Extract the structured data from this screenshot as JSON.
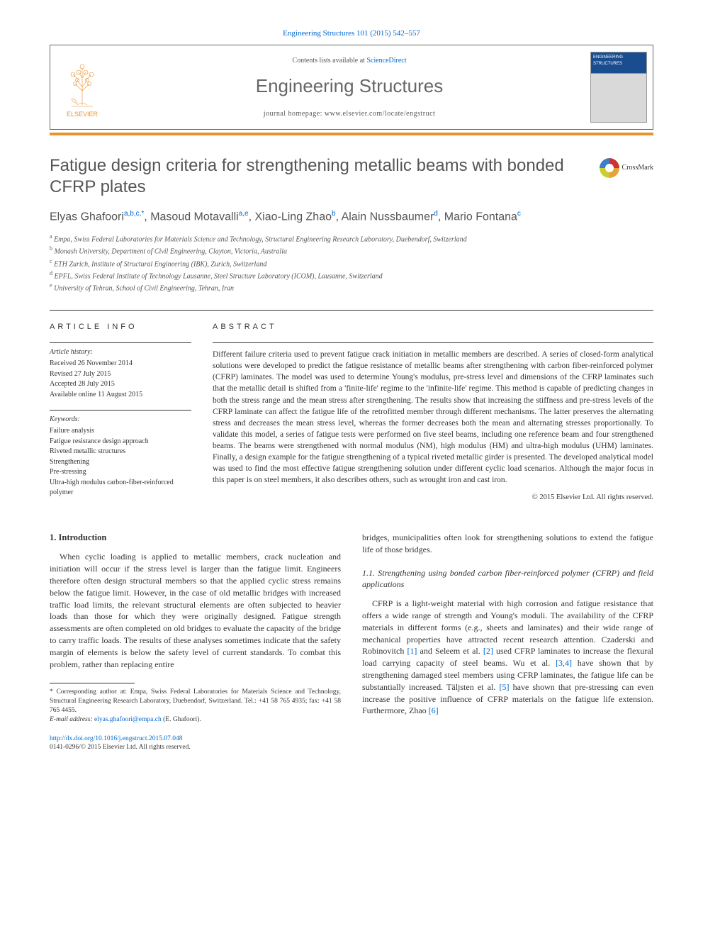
{
  "citation": {
    "text": "Engineering Structures 101 (2015) 542–557",
    "link_color": "#0066cc"
  },
  "header": {
    "contents_prefix": "Contents lists available at ",
    "contents_link": "ScienceDirect",
    "journal_name": "Engineering Structures",
    "homepage_prefix": "journal homepage: ",
    "homepage_url": "www.elsevier.com/locate/engstruct",
    "publisher_logo_label": "ELSEVIER",
    "cover_title": "ENGINEERING STRUCTURES"
  },
  "colors": {
    "accent_orange": "#e8932e",
    "link_blue": "#0066cc",
    "heading_gray": "#555555",
    "rule_dark": "#333333",
    "background": "#ffffff"
  },
  "article": {
    "title": "Fatigue design criteria for strengthening metallic beams with bonded CFRP plates",
    "crossmark_label": "CrossMark",
    "authors_html": "Elyas Ghafoori|a,b,c,*|, Masoud Motavalli|a,e|, Xiao-Ling Zhao|b|, Alain Nussbaumer|d|, Mario Fontana|c|",
    "affiliations": [
      {
        "sup": "a",
        "text": "Empa, Swiss Federal Laboratories for Materials Science and Technology, Structural Engineering Research Laboratory, Duebendorf, Switzerland"
      },
      {
        "sup": "b",
        "text": "Monash University, Department of Civil Engineering, Clayton, Victoria, Australia"
      },
      {
        "sup": "c",
        "text": "ETH Zurich, Institute of Structural Engineering (IBK), Zurich, Switzerland"
      },
      {
        "sup": "d",
        "text": "EPFL, Swiss Federal Institute of Technology Lausanne, Steel Structure Laboratory (ICOM), Lausanne, Switzerland"
      },
      {
        "sup": "e",
        "text": "University of Tehran, School of Civil Engineering, Tehran, Iran"
      }
    ]
  },
  "article_info": {
    "heading": "article info",
    "history_label": "Article history:",
    "history": [
      "Received 26 November 2014",
      "Revised 27 July 2015",
      "Accepted 28 July 2015",
      "Available online 11 August 2015"
    ],
    "keywords_label": "Keywords:",
    "keywords": [
      "Failure analysis",
      "Fatigue resistance design approach",
      "Riveted metallic structures",
      "Strengthening",
      "Pre-stressing",
      "Ultra-high modulus carbon-fiber-reinforced polymer"
    ]
  },
  "abstract": {
    "heading": "abstract",
    "text": "Different failure criteria used to prevent fatigue crack initiation in metallic members are described. A series of closed-form analytical solutions were developed to predict the fatigue resistance of metallic beams after strengthening with carbon fiber-reinforced polymer (CFRP) laminates. The model was used to determine Young's modulus, pre-stress level and dimensions of the CFRP laminates such that the metallic detail is shifted from a 'finite-life' regime to the 'infinite-life' regime. This method is capable of predicting changes in both the stress range and the mean stress after strengthening. The results show that increasing the stiffness and pre-stress levels of the CFRP laminate can affect the fatigue life of the retrofitted member through different mechanisms. The latter preserves the alternating stress and decreases the mean stress level, whereas the former decreases both the mean and alternating stresses proportionally. To validate this model, a series of fatigue tests were performed on five steel beams, including one reference beam and four strengthened beams. The beams were strengthened with normal modulus (NM), high modulus (HM) and ultra-high modulus (UHM) laminates. Finally, a design example for the fatigue strengthening of a typical riveted metallic girder is presented. The developed analytical model was used to find the most effective fatigue strengthening solution under different cyclic load scenarios. Although the major focus in this paper is on steel members, it also describes others, such as wrought iron and cast iron.",
    "copyright": "© 2015 Elsevier Ltd. All rights reserved."
  },
  "body": {
    "sec1_title": "1. Introduction",
    "sec1_p1": "When cyclic loading is applied to metallic members, crack nucleation and initiation will occur if the stress level is larger than the fatigue limit. Engineers therefore often design structural members so that the applied cyclic stress remains below the fatigue limit. However, in the case of old metallic bridges with increased traffic load limits, the relevant structural elements are often subjected to heavier loads than those for which they were originally designed. Fatigue strength assessments are often completed on old bridges to evaluate the capacity of the bridge to carry traffic loads. The results of these analyses sometimes indicate that the safety margin of elements is below the safety level of current standards. To combat this problem, rather than replacing entire",
    "sec1_p1b": "bridges, municipalities often look for strengthening solutions to extend the fatigue life of those bridges.",
    "sec11_title": "1.1. Strengthening using bonded carbon fiber-reinforced polymer (CFRP) and field applications",
    "sec11_p1_pre": "CFRP is a light-weight material with high corrosion and fatigue resistance that offers a wide range of strength and Young's moduli. The availability of the CFRP materials in different forms (e.g., sheets and laminates) and their wide range of mechanical properties have attracted recent research attention. Czaderski and Robinovitch ",
    "ref1": "[1]",
    "sec11_p1_a": " and Seleem et al. ",
    "ref2": "[2]",
    "sec11_p1_b": " used CFRP laminates to increase the flexural load carrying capacity of steel beams. Wu et al. ",
    "ref34": "[3,4]",
    "sec11_p1_c": " have shown that by strengthening damaged steel members using CFRP laminates, the fatigue life can be substantially increased. Täljsten et al. ",
    "ref5": "[5]",
    "sec11_p1_d": " have shown that pre-stressing can even increase the positive influence of CFRP materials on the fatigue life extension. Furthermore, Zhao ",
    "ref6": "[6]"
  },
  "footnotes": {
    "corr": "* Corresponding author at: Empa, Swiss Federal Laboratories for Materials Science and Technology, Structural Engineering Research Laboratory, Duebendorf, Switzerland. Tel.: +41 58 765 4935; fax: +41 58 765 4455.",
    "email_label": "E-mail address: ",
    "email": "elyas.ghafoori@empa.ch",
    "email_suffix": " (E. Ghafoori)."
  },
  "doi": {
    "url": "http://dx.doi.org/10.1016/j.engstruct.2015.07.048",
    "issn_line": "0141-0296/© 2015 Elsevier Ltd. All rights reserved."
  }
}
